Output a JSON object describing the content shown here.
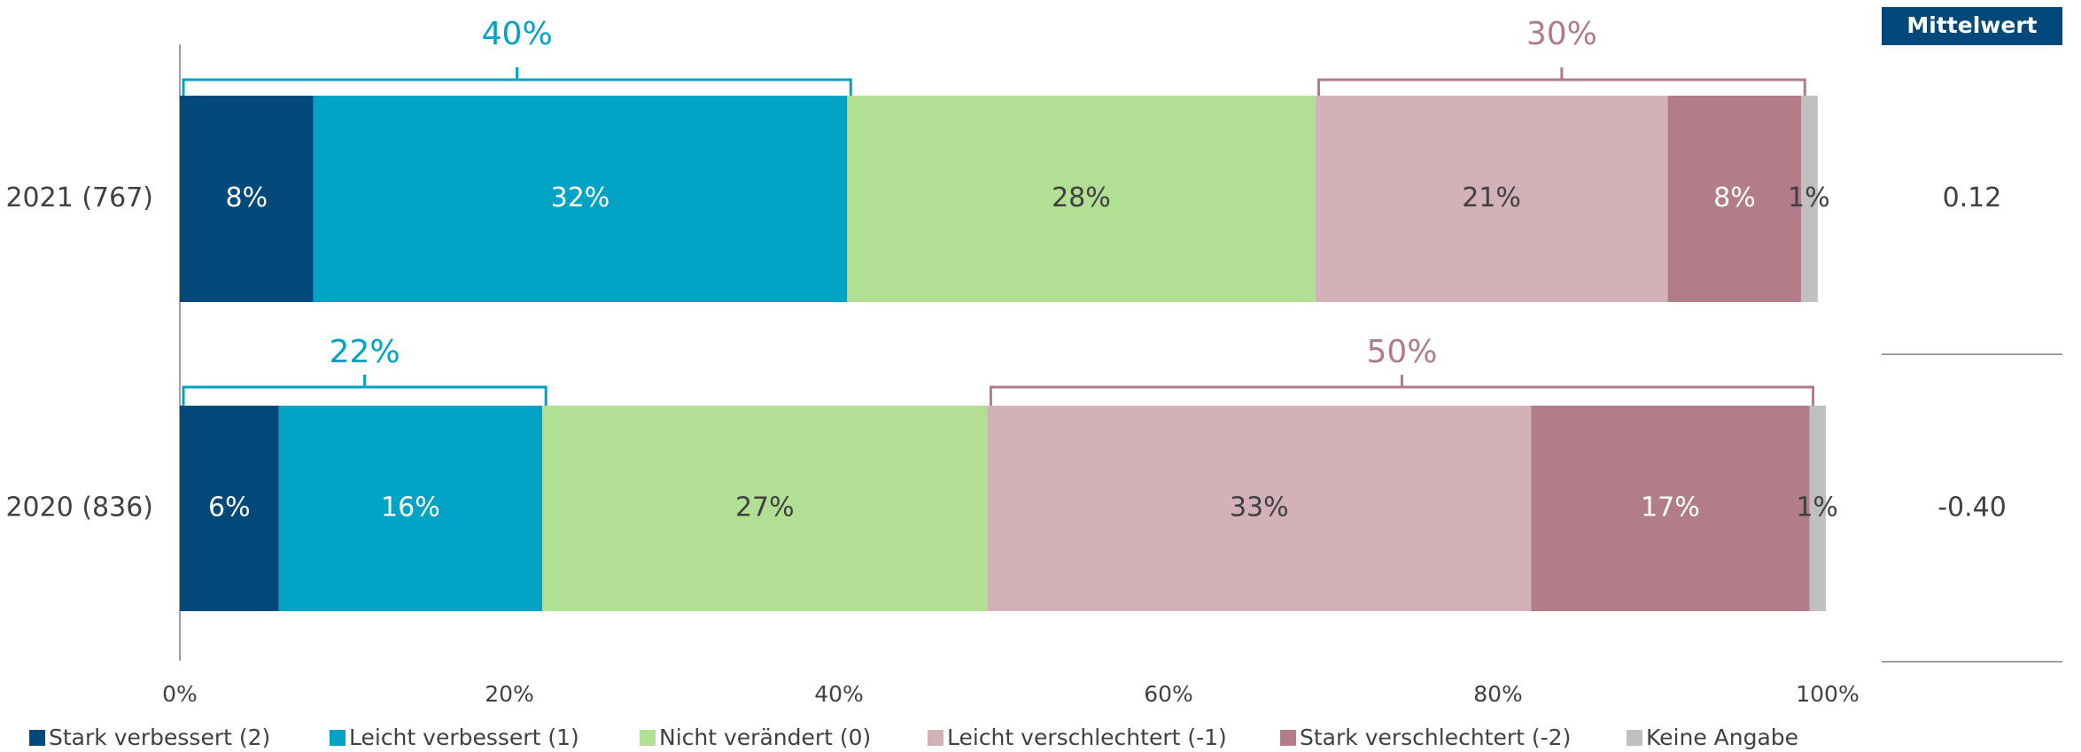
{
  "chart_data": {
    "type": "stacked-bar-horizontal",
    "categories": [
      "2021 (767)",
      "2020 (836)"
    ],
    "series": [
      {
        "name": "Stark verbessert (2)",
        "color": "#00497a",
        "values": [
          8.1,
          6.0
        ],
        "value_labels": [
          "8%",
          "6%"
        ]
      },
      {
        "name": "Leicht verbessert (1)",
        "color": "#00a3c4",
        "values": [
          32.4,
          16.0
        ],
        "value_labels": [
          "32%",
          "16%"
        ]
      },
      {
        "name": "Nicht verändert (0)",
        "color": "#b1e094",
        "values": [
          28.4,
          27.0
        ],
        "value_labels": [
          "28%",
          "27%"
        ]
      },
      {
        "name": "Leicht verschlechtert (-1)",
        "color": "#d3b1b9",
        "values": [
          21.4,
          33.0
        ],
        "value_labels": [
          "21%",
          "33%"
        ]
      },
      {
        "name": "Stark verschlechtert (-2)",
        "color": "#b27c89",
        "values": [
          8.1,
          16.9
        ],
        "value_labels": [
          "8%",
          "17%"
        ]
      },
      {
        "name": "Keine Angabe",
        "color": "#c0c0c0",
        "values": [
          1.0,
          1.0
        ],
        "value_labels": [
          "1%",
          "1%"
        ]
      }
    ],
    "improved_total": {
      "color": "#00a3c4",
      "values": [
        40,
        22
      ],
      "value_labels": [
        "40%",
        "22%"
      ]
    },
    "worsened_total": {
      "color": "#b07c8a",
      "values": [
        30,
        50
      ],
      "value_labels": [
        "30%",
        "50%"
      ]
    },
    "xlim": [
      0,
      100
    ],
    "xticks": [
      {
        "value": 0,
        "label": "0%"
      },
      {
        "value": 20,
        "label": "20%"
      },
      {
        "value": 40,
        "label": "40%"
      },
      {
        "value": 60,
        "label": "60%"
      },
      {
        "value": 80,
        "label": "80%"
      },
      {
        "value": 100,
        "label": "100%"
      }
    ],
    "mean": {
      "header": "Mittelwert",
      "values": [
        0.12,
        -0.4
      ],
      "value_labels": [
        "0.12",
        "-0.40"
      ]
    }
  }
}
